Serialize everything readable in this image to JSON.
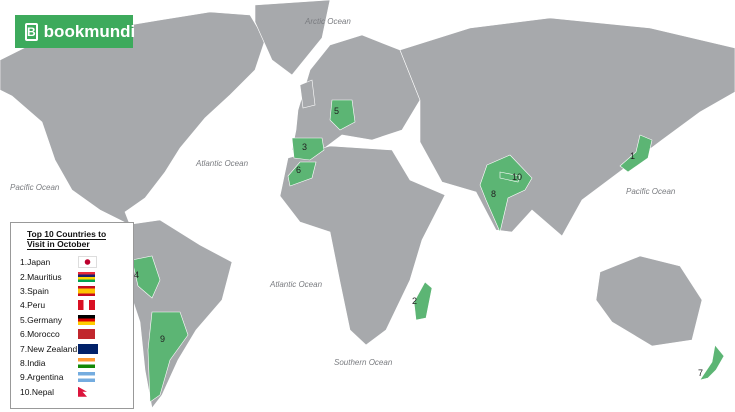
{
  "logo": {
    "text": "bookmundi"
  },
  "oceans": [
    "Arctic Ocean",
    "Atlantic Ocean",
    "Pacific Ocean",
    "Pacific Ocean",
    "Atlantic Ocean",
    "Southern Ocean"
  ],
  "legend": {
    "title_line1": "Top 10 Countries to",
    "title_line2": "Visit in October",
    "items": [
      {
        "rank": "1.",
        "name": "Japan",
        "flag": "japan-flag"
      },
      {
        "rank": "2.",
        "name": "Mauritius",
        "flag": "mauritius-flag"
      },
      {
        "rank": "3.",
        "name": "Spain",
        "flag": "spain-flag"
      },
      {
        "rank": "4.",
        "name": "Peru",
        "flag": "peru-flag"
      },
      {
        "rank": "5.",
        "name": "Germany",
        "flag": "germany-flag"
      },
      {
        "rank": "6.",
        "name": "Morocco",
        "flag": "morocco-flag"
      },
      {
        "rank": "7.",
        "name": "New Zealand",
        "flag": "new-zealand-flag"
      },
      {
        "rank": "8.",
        "name": "India",
        "flag": "india-flag"
      },
      {
        "rank": "9.",
        "name": "Argentina",
        "flag": "argentina-flag"
      },
      {
        "rank": "10.",
        "name": "Nepal",
        "flag": "nepal-flag"
      }
    ]
  },
  "markers": [
    "1",
    "2",
    "3",
    "4",
    "5",
    "6",
    "7",
    "8",
    "9",
    "10"
  ],
  "colors": {
    "land": "#a7a9ac",
    "highlight": "#5cb574",
    "brand": "#3daa5c"
  }
}
